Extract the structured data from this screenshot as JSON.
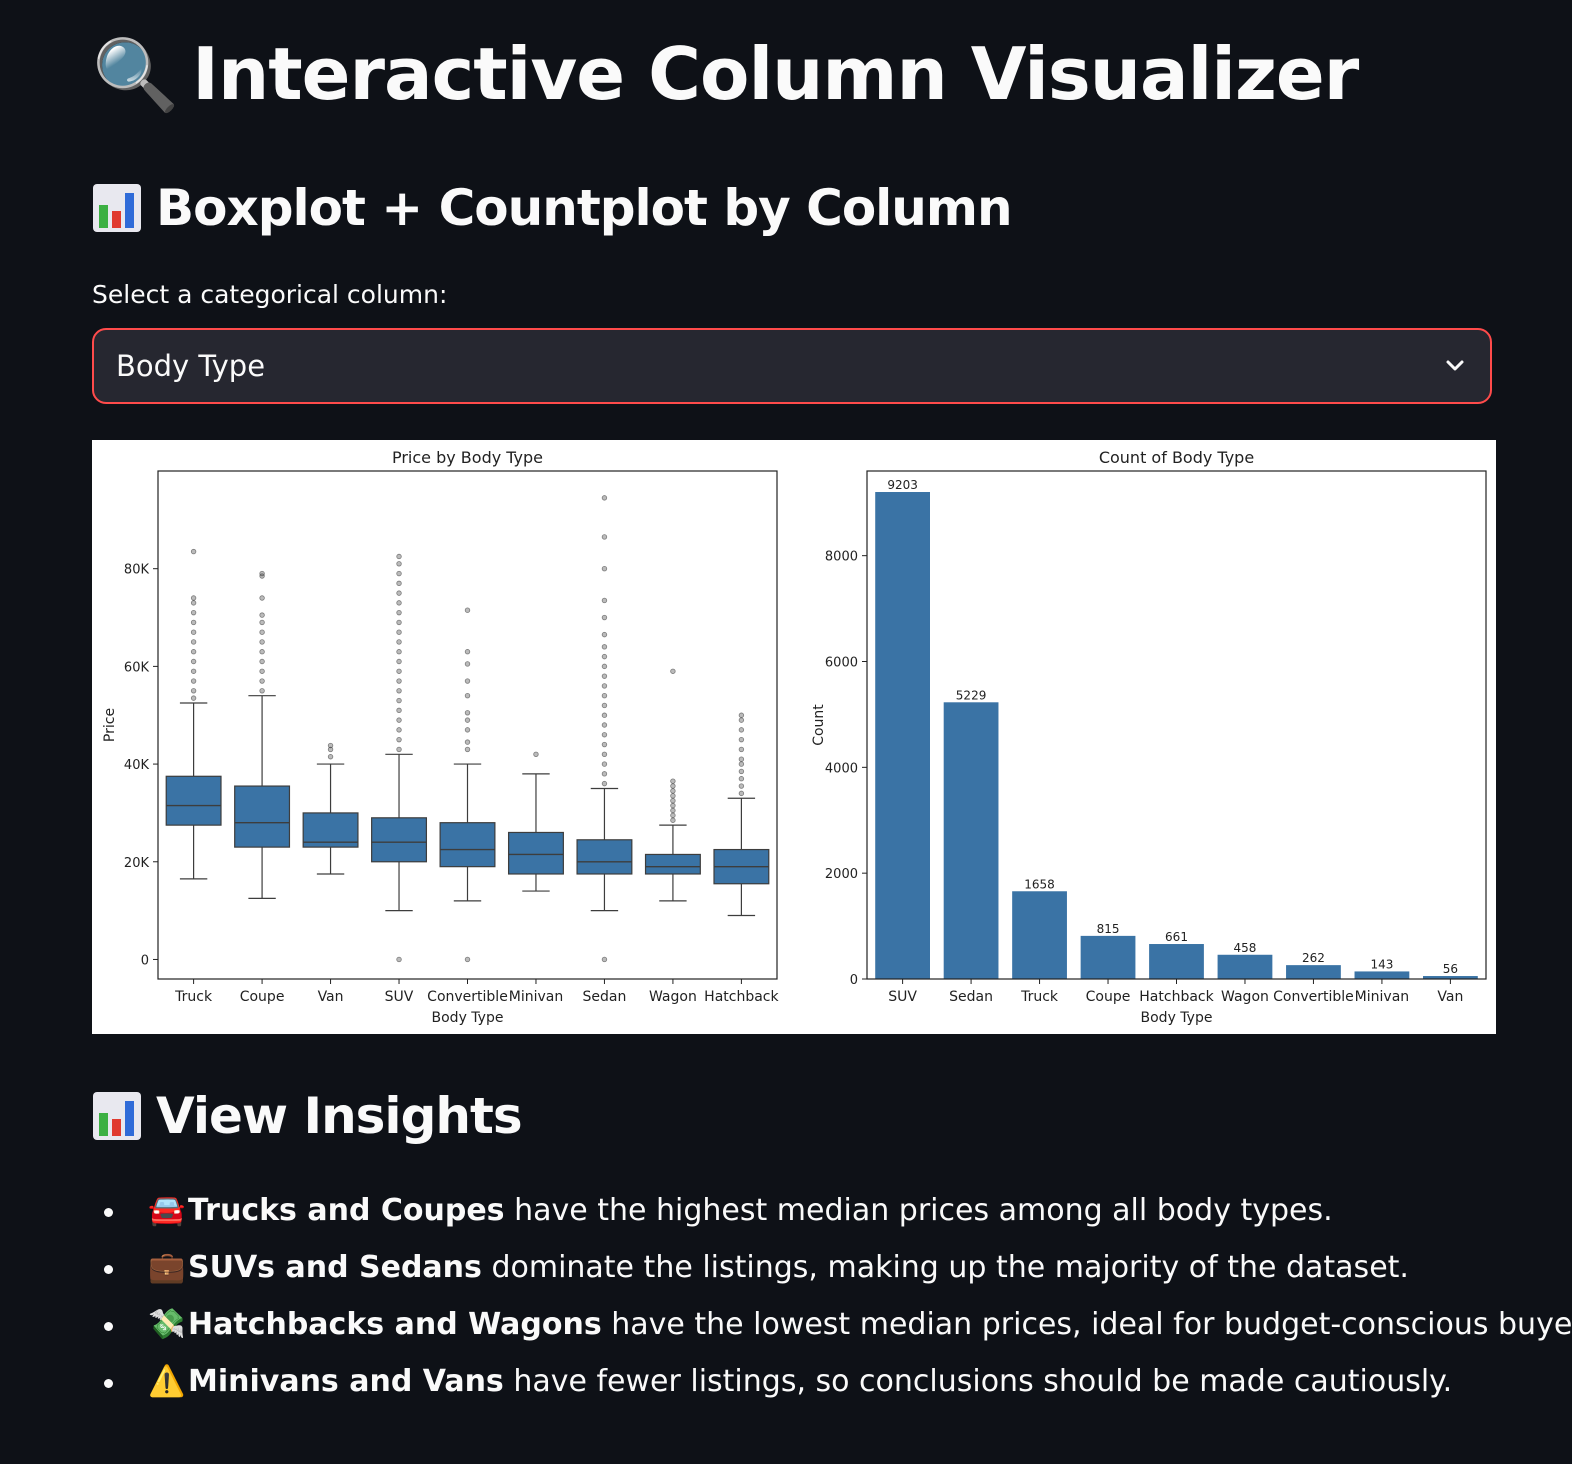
{
  "header": {
    "title_icon": "magnifier-icon",
    "title_glyph": "🔍",
    "title": "Interactive Column Visualizer"
  },
  "section1": {
    "icon": "bar-chart-icon",
    "title": "Boxplot + Countplot by Column"
  },
  "selector": {
    "label": "Select a categorical column:",
    "value": "Body Type",
    "border_color": "#ff4b4b"
  },
  "chart_data": [
    {
      "type": "box",
      "title": "Price by Body Type",
      "xlabel": "Body Type",
      "ylabel": "Price",
      "ylim": [
        -4000,
        100000
      ],
      "yticks": [
        0,
        20000,
        40000,
        60000,
        80000
      ],
      "ytick_labels": [
        "0",
        "20K",
        "40K",
        "60K",
        "80K"
      ],
      "color": "#3a73a5",
      "categories": [
        "Truck",
        "Coupe",
        "Van",
        "SUV",
        "Convertible",
        "Minivan",
        "Sedan",
        "Wagon",
        "Hatchback"
      ],
      "boxes": [
        {
          "whislo": 16500,
          "q1": 27500,
          "med": 31500,
          "q3": 37500,
          "whishi": 52500,
          "fliers": [
            53500,
            55000,
            57000,
            59000,
            61000,
            63000,
            65000,
            67000,
            69000,
            71000,
            73000,
            74000,
            83500
          ]
        },
        {
          "whislo": 12500,
          "q1": 23000,
          "med": 28000,
          "q3": 35500,
          "whishi": 54000,
          "fliers": [
            55000,
            57000,
            59000,
            61000,
            63000,
            65000,
            67000,
            69000,
            70500,
            74000,
            78500,
            79000
          ]
        },
        {
          "whislo": 17500,
          "q1": 23000,
          "med": 24000,
          "q3": 30000,
          "whishi": 40000,
          "fliers": [
            41500,
            43000,
            43800
          ]
        },
        {
          "whislo": 10000,
          "q1": 20000,
          "med": 24000,
          "q3": 29000,
          "whishi": 42000,
          "fliers": [
            0,
            43000,
            45000,
            47000,
            49000,
            51000,
            53000,
            55000,
            57000,
            59000,
            61000,
            63000,
            65000,
            67000,
            69000,
            71000,
            73000,
            75000,
            77000,
            79000,
            81000,
            82500
          ]
        },
        {
          "whislo": 12000,
          "q1": 19000,
          "med": 22500,
          "q3": 28000,
          "whishi": 40000,
          "fliers": [
            0,
            43000,
            44500,
            47000,
            49000,
            50500,
            54000,
            57000,
            60500,
            63000,
            71500
          ]
        },
        {
          "whislo": 14000,
          "q1": 17500,
          "med": 21500,
          "q3": 26000,
          "whishi": 38000,
          "fliers": [
            42000
          ]
        },
        {
          "whislo": 10000,
          "q1": 17500,
          "med": 20000,
          "q3": 24500,
          "whishi": 35000,
          "fliers": [
            0,
            36000,
            38000,
            40000,
            42000,
            44000,
            46000,
            48000,
            50000,
            52000,
            54000,
            56000,
            58000,
            60000,
            62000,
            64000,
            66500,
            70000,
            73500,
            80000,
            86500,
            94500
          ]
        },
        {
          "whislo": 12000,
          "q1": 17500,
          "med": 19000,
          "q3": 21500,
          "whishi": 27500,
          "fliers": [
            28500,
            29500,
            30500,
            31500,
            32500,
            33500,
            34500,
            35500,
            36500,
            59000
          ]
        },
        {
          "whislo": 9000,
          "q1": 15500,
          "med": 19000,
          "q3": 22500,
          "whishi": 33000,
          "fliers": [
            34000,
            35500,
            37000,
            38500,
            40000,
            41000,
            43000,
            45000,
            47000,
            49000,
            50000
          ]
        }
      ]
    },
    {
      "type": "bar",
      "title": "Count of Body Type",
      "xlabel": "Body Type",
      "ylabel": "Count",
      "ylim": [
        0,
        9600
      ],
      "yticks": [
        0,
        2000,
        4000,
        6000,
        8000
      ],
      "ytick_labels": [
        "0",
        "2000",
        "4000",
        "6000",
        "8000"
      ],
      "color": "#3a73a5",
      "categories": [
        "SUV",
        "Sedan",
        "Truck",
        "Coupe",
        "Hatchback",
        "Wagon",
        "Convertible",
        "Minivan",
        "Van"
      ],
      "values": [
        9203,
        5229,
        1658,
        815,
        661,
        458,
        262,
        143,
        56
      ],
      "value_labels": [
        "9203",
        "5229",
        "1658",
        "815",
        "661",
        "458",
        "262",
        "143",
        "56"
      ]
    }
  ],
  "section2": {
    "icon": "bar-chart-icon",
    "title": "View Insights"
  },
  "insights": [
    {
      "icon": "car-icon",
      "glyph": "🚘",
      "bold": "Trucks and Coupes",
      "text": " have the highest median prices among all body types."
    },
    {
      "icon": "briefcase-icon",
      "glyph": "💼",
      "bold": "SUVs and Sedans",
      "text": " dominate the listings, making up the majority of the dataset."
    },
    {
      "icon": "money-wings-icon",
      "glyph": "💸",
      "bold": "Hatchbacks and Wagons",
      "text": " have the lowest median prices, ideal for budget-conscious buyers."
    },
    {
      "icon": "warning-icon",
      "glyph": "⚠️",
      "bold": "Minivans and Vans",
      "text": " have fewer listings, so conclusions should be made cautiously."
    }
  ]
}
